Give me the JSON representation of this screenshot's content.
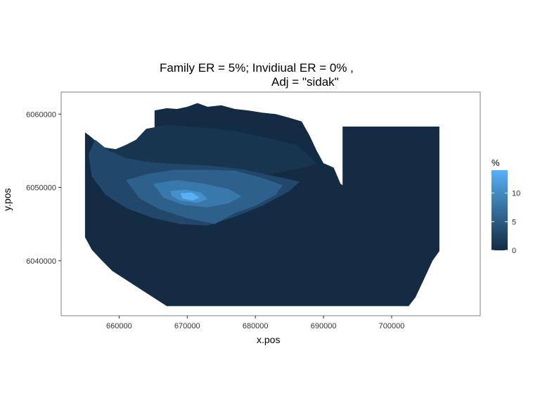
{
  "chart_data": {
    "type": "heatmap",
    "title_line1": "Family ER = 5%; Invidiual ER = 0% ,",
    "title_line2": "Adj = \"sidak\"",
    "xlabel": "x.pos",
    "ylabel": "y.pos",
    "xlim": [
      651500,
      713000
    ],
    "ylim": [
      6032500,
      6063000
    ],
    "x_ticks": [
      660000,
      670000,
      680000,
      690000,
      700000
    ],
    "x_tick_labels": [
      "660000",
      "670000",
      "680000",
      "690000",
      "700000"
    ],
    "y_ticks": [
      6040000,
      6050000,
      6060000
    ],
    "y_tick_labels": [
      "6040000",
      "6050000",
      "6060000"
    ],
    "grid": false,
    "panel_border": true,
    "legend": {
      "title": "%",
      "position": "right",
      "min": 0,
      "max": 14,
      "breaks": [
        0,
        5,
        10
      ],
      "break_labels": [
        "0",
        "5",
        "10"
      ],
      "low_color": "#132b43",
      "high_color": "#56b1f7"
    },
    "regions": [
      {
        "value": 0,
        "description": "study area outline",
        "points": [
          [
            655000,
            6057500
          ],
          [
            656000,
            6056800
          ],
          [
            657500,
            6055500
          ],
          [
            659500,
            6055200
          ],
          [
            661000,
            6055800
          ],
          [
            662500,
            6056500
          ],
          [
            664000,
            6058000
          ],
          [
            665200,
            6058000
          ],
          [
            665200,
            6060500
          ],
          [
            667000,
            6060800
          ],
          [
            668500,
            6060700
          ],
          [
            670000,
            6061000
          ],
          [
            671500,
            6061500
          ],
          [
            673000,
            6061000
          ],
          [
            675000,
            6061200
          ],
          [
            677000,
            6060700
          ],
          [
            679000,
            6060500
          ],
          [
            681000,
            6060200
          ],
          [
            683000,
            6060000
          ],
          [
            685000,
            6059500
          ],
          [
            686800,
            6059000
          ],
          [
            688000,
            6057000
          ],
          [
            689000,
            6055000
          ],
          [
            690000,
            6053300
          ],
          [
            691500,
            6052700
          ],
          [
            692500,
            6050500
          ],
          [
            692800,
            6050300
          ],
          [
            692800,
            6058300
          ],
          [
            707000,
            6058300
          ],
          [
            707000,
            6041300
          ],
          [
            706000,
            6040000
          ],
          [
            705000,
            6038000
          ],
          [
            704000,
            6036000
          ],
          [
            703500,
            6035000
          ],
          [
            702500,
            6033800
          ],
          [
            697000,
            6033800
          ],
          [
            690000,
            6033800
          ],
          [
            680000,
            6033800
          ],
          [
            672000,
            6033800
          ],
          [
            667000,
            6033800
          ],
          [
            665000,
            6035000
          ],
          [
            663000,
            6036200
          ],
          [
            661000,
            6037400
          ],
          [
            659000,
            6038600
          ],
          [
            657500,
            6040000
          ],
          [
            656000,
            6041500
          ],
          [
            655000,
            6043200
          ],
          [
            655000,
            6044500
          ]
        ]
      },
      {
        "value": 1,
        "description": "upper band",
        "points": [
          [
            655500,
            6057200
          ],
          [
            657500,
            6055500
          ],
          [
            659500,
            6055200
          ],
          [
            661000,
            6055800
          ],
          [
            662500,
            6056500
          ],
          [
            664000,
            6058000
          ],
          [
            667000,
            6058500
          ],
          [
            672000,
            6058200
          ],
          [
            677000,
            6057700
          ],
          [
            682000,
            6056700
          ],
          [
            686000,
            6055800
          ],
          [
            688000,
            6054200
          ],
          [
            689000,
            6053200
          ],
          [
            686000,
            6052500
          ],
          [
            682000,
            6051800
          ],
          [
            676000,
            6052000
          ],
          [
            670000,
            6052300
          ],
          [
            664000,
            6052700
          ],
          [
            660000,
            6054000
          ],
          [
            657000,
            6055500
          ]
        ]
      },
      {
        "value": 3,
        "description": "intermediate band",
        "points": [
          [
            656500,
            6056500
          ],
          [
            658500,
            6055000
          ],
          [
            661000,
            6054000
          ],
          [
            664000,
            6053500
          ],
          [
            668000,
            6053200
          ],
          [
            673000,
            6053000
          ],
          [
            678000,
            6052500
          ],
          [
            683000,
            6051500
          ],
          [
            686500,
            6050800
          ],
          [
            685000,
            6049500
          ],
          [
            681000,
            6047500
          ],
          [
            677000,
            6046000
          ],
          [
            673000,
            6044800
          ],
          [
            669000,
            6045000
          ],
          [
            665000,
            6045800
          ],
          [
            661000,
            6047200
          ],
          [
            658000,
            6049000
          ],
          [
            656000,
            6051500
          ],
          [
            655500,
            6054500
          ]
        ]
      },
      {
        "value": 5.5,
        "description": "central elevated zone",
        "points": [
          [
            661000,
            6051000
          ],
          [
            664000,
            6051800
          ],
          [
            668000,
            6052400
          ],
          [
            673000,
            6052400
          ],
          [
            677000,
            6052300
          ],
          [
            681000,
            6051300
          ],
          [
            684000,
            6050300
          ],
          [
            683000,
            6049000
          ],
          [
            680000,
            6047500
          ],
          [
            677000,
            6046500
          ],
          [
            674000,
            6045000
          ],
          [
            670000,
            6045800
          ],
          [
            666000,
            6047000
          ],
          [
            663000,
            6048500
          ]
        ]
      },
      {
        "value": 8,
        "description": "inner zone",
        "points": [
          [
            665000,
            6050500
          ],
          [
            668500,
            6051000
          ],
          [
            672500,
            6050500
          ],
          [
            676000,
            6049800
          ],
          [
            678000,
            6048800
          ],
          [
            676000,
            6047800
          ],
          [
            673000,
            6047300
          ],
          [
            669500,
            6047600
          ],
          [
            666500,
            6048600
          ]
        ]
      },
      {
        "value": 10.5,
        "description": "high zone",
        "points": [
          [
            667500,
            6049500
          ],
          [
            669800,
            6049700
          ],
          [
            672000,
            6049300
          ],
          [
            673000,
            6048400
          ],
          [
            671500,
            6047900
          ],
          [
            669000,
            6048200
          ],
          [
            667800,
            6048800
          ]
        ]
      },
      {
        "value": 14,
        "description": "peak",
        "points": [
          [
            669000,
            6049200
          ],
          [
            670700,
            6049300
          ],
          [
            671800,
            6048600
          ],
          [
            670800,
            6048200
          ],
          [
            669300,
            6048500
          ]
        ]
      }
    ]
  }
}
